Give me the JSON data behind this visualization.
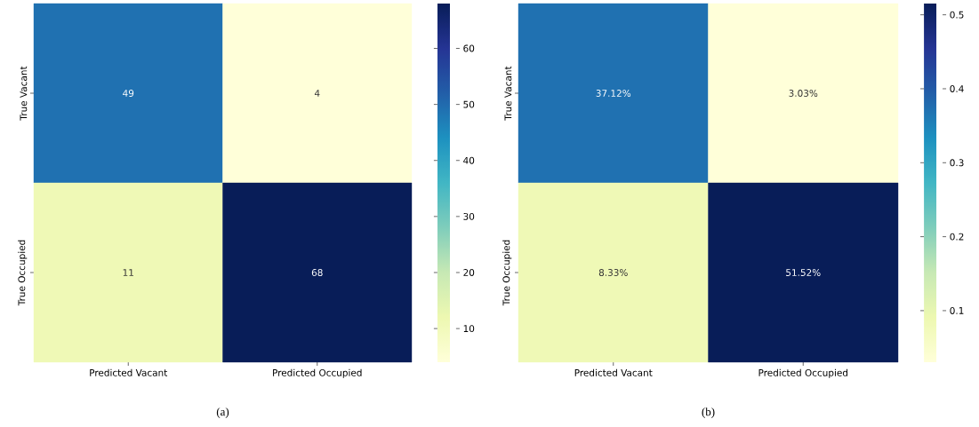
{
  "chart_data": [
    {
      "type": "heatmap",
      "categories": [
        "Predicted Vacant",
        "Predicted Occupied"
      ],
      "y_categories": [
        "True Vacant",
        "True Occupied"
      ],
      "cells": [
        [
          49,
          4
        ],
        [
          11,
          68
        ]
      ],
      "data_labels": true,
      "clim": [
        4,
        68
      ],
      "cticks": [
        10,
        20,
        30,
        40,
        50,
        60
      ],
      "annotations": [
        "(a)"
      ]
    },
    {
      "type": "heatmap",
      "categories": [
        "Predicted Vacant",
        "Predicted Occupied"
      ],
      "y_categories": [
        "True Vacant",
        "True Occupied"
      ],
      "cells": [
        [
          0.3712,
          0.0303
        ],
        [
          0.0833,
          0.5152
        ]
      ],
      "cell_labels": [
        [
          "37.12%",
          "3.03%"
        ],
        [
          "8.33%",
          "51.52%"
        ]
      ],
      "clim": [
        0.0303,
        0.5152
      ],
      "cticks": [
        0.1,
        0.2,
        0.3,
        0.4,
        0.5
      ],
      "annotations": [
        "(b)"
      ]
    }
  ]
}
